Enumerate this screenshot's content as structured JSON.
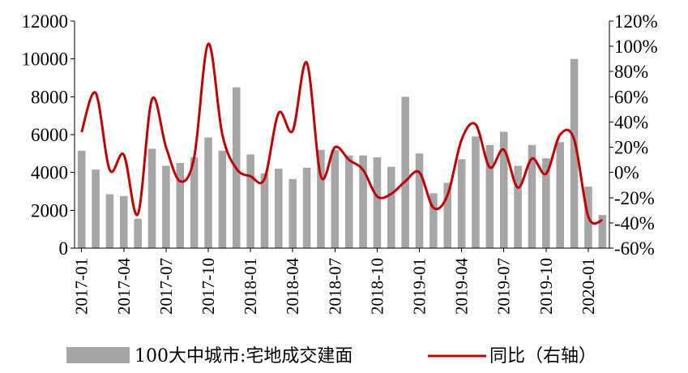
{
  "chart_data": {
    "type": "bar+line",
    "title": "",
    "xlabel": "",
    "ylabel": "",
    "y2label": "",
    "ylim": [
      0,
      12000
    ],
    "y2lim": [
      -0.6,
      1.2
    ],
    "yticks": [
      "0",
      "2000",
      "4000",
      "6000",
      "8000",
      "10000",
      "12000"
    ],
    "y2ticks": [
      "-60%",
      "-40%",
      "-20%",
      "0%",
      "20%",
      "40%",
      "60%",
      "80%",
      "100%",
      "120%"
    ],
    "xtick_labels": [
      "2017-01",
      "2017-04",
      "2017-07",
      "2017-10",
      "2018-01",
      "2018-04",
      "2018-07",
      "2018-10",
      "2019-01",
      "2019-04",
      "2019-07",
      "2019-10",
      "2020-01"
    ],
    "categories": [
      "2017-01",
      "2017-02",
      "2017-03",
      "2017-04",
      "2017-05",
      "2017-06",
      "2017-07",
      "2017-08",
      "2017-09",
      "2017-10",
      "2017-11",
      "2017-12",
      "2018-01",
      "2018-02",
      "2018-03",
      "2018-04",
      "2018-05",
      "2018-06",
      "2018-07",
      "2018-08",
      "2018-09",
      "2018-10",
      "2018-11",
      "2018-12",
      "2019-01",
      "2019-02",
      "2019-03",
      "2019-04",
      "2019-05",
      "2019-06",
      "2019-07",
      "2019-08",
      "2019-09",
      "2019-10",
      "2019-11",
      "2019-12",
      "2020-01",
      "2020-02"
    ],
    "series": [
      {
        "name": "100大中城市:宅地成交建面",
        "type": "bar",
        "axis": "left",
        "color": "#a6a6a6",
        "values": [
          5150,
          4150,
          2850,
          2750,
          1550,
          5250,
          4350,
          4500,
          4800,
          5850,
          5150,
          8500,
          4950,
          3950,
          4200,
          3650,
          4250,
          5200,
          5200,
          4900,
          4900,
          4800,
          4300,
          8000,
          5000,
          2900,
          3450,
          4700,
          5900,
          5450,
          6150,
          4350,
          5450,
          4750,
          5600,
          10000,
          3250,
          1750
        ]
      },
      {
        "name": "同比（右轴）",
        "type": "line",
        "axis": "right",
        "color": "#c00000",
        "values": [
          0.32,
          0.63,
          0.02,
          0.14,
          -0.33,
          0.58,
          0.2,
          -0.07,
          0.12,
          1.02,
          0.3,
          0.03,
          -0.03,
          -0.05,
          0.47,
          0.33,
          0.87,
          -0.03,
          0.2,
          0.1,
          0.02,
          -0.19,
          -0.17,
          -0.07,
          0.0,
          -0.28,
          -0.18,
          0.26,
          0.38,
          0.04,
          0.18,
          -0.12,
          0.11,
          -0.01,
          0.3,
          0.26,
          -0.35,
          -0.38
        ]
      }
    ],
    "legend": {
      "position": "bottom"
    }
  }
}
